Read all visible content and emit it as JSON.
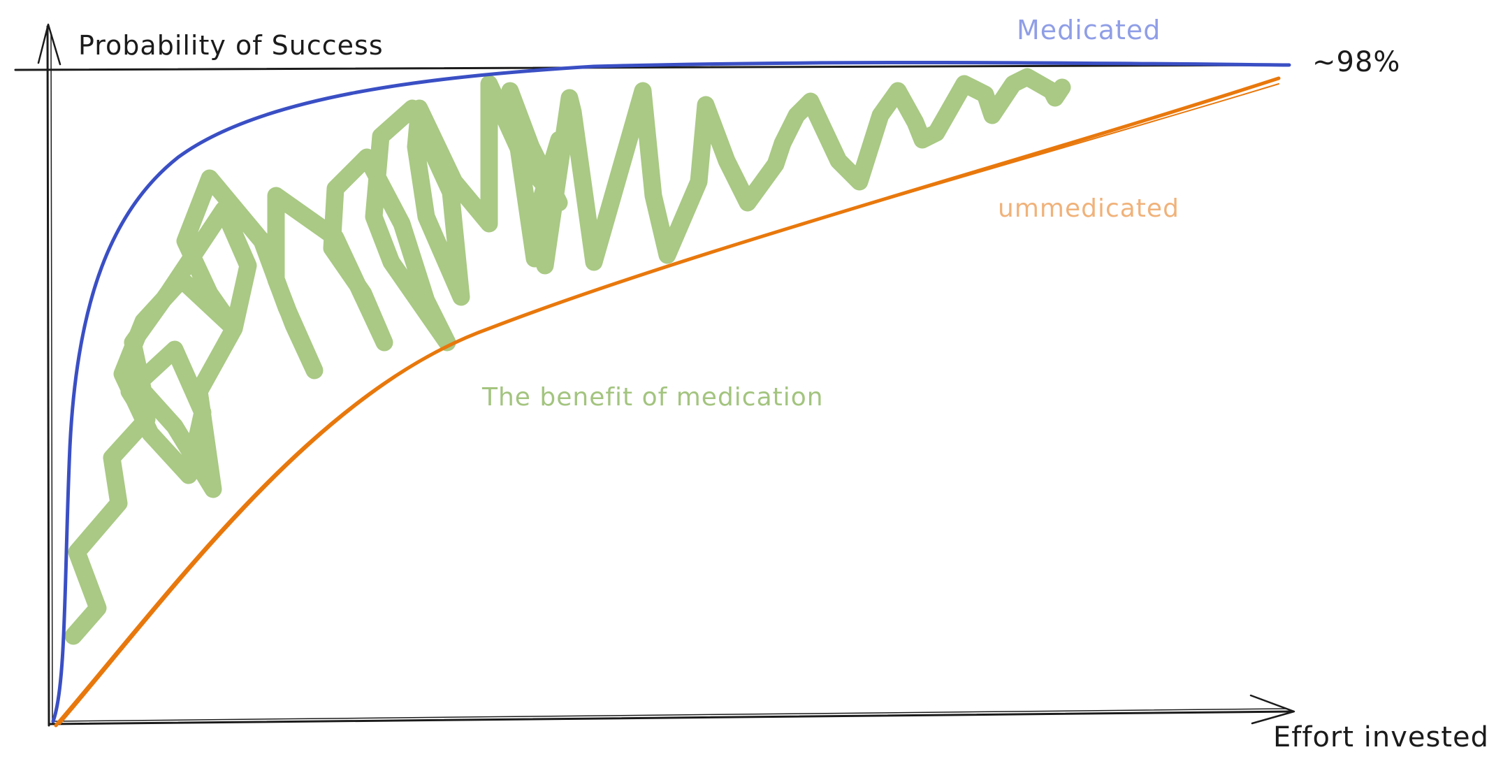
{
  "diagram": {
    "y_axis_label": "Probability of Success",
    "x_axis_label": "Effort invested",
    "asymptote_label": "~98%",
    "curves": {
      "medicated": {
        "label": "Medicated",
        "stroke": "#3a4fc4",
        "label_color": "#8f9ee6"
      },
      "unmedicated": {
        "label": "ummedicated",
        "stroke": "#e8780c",
        "label_color": "#f0b27a"
      }
    },
    "benefit_region": {
      "label": "The benefit of medication",
      "fill": "#a9c984",
      "label_color": "#a3c47f"
    },
    "axis_color": "#1b1b1b"
  }
}
